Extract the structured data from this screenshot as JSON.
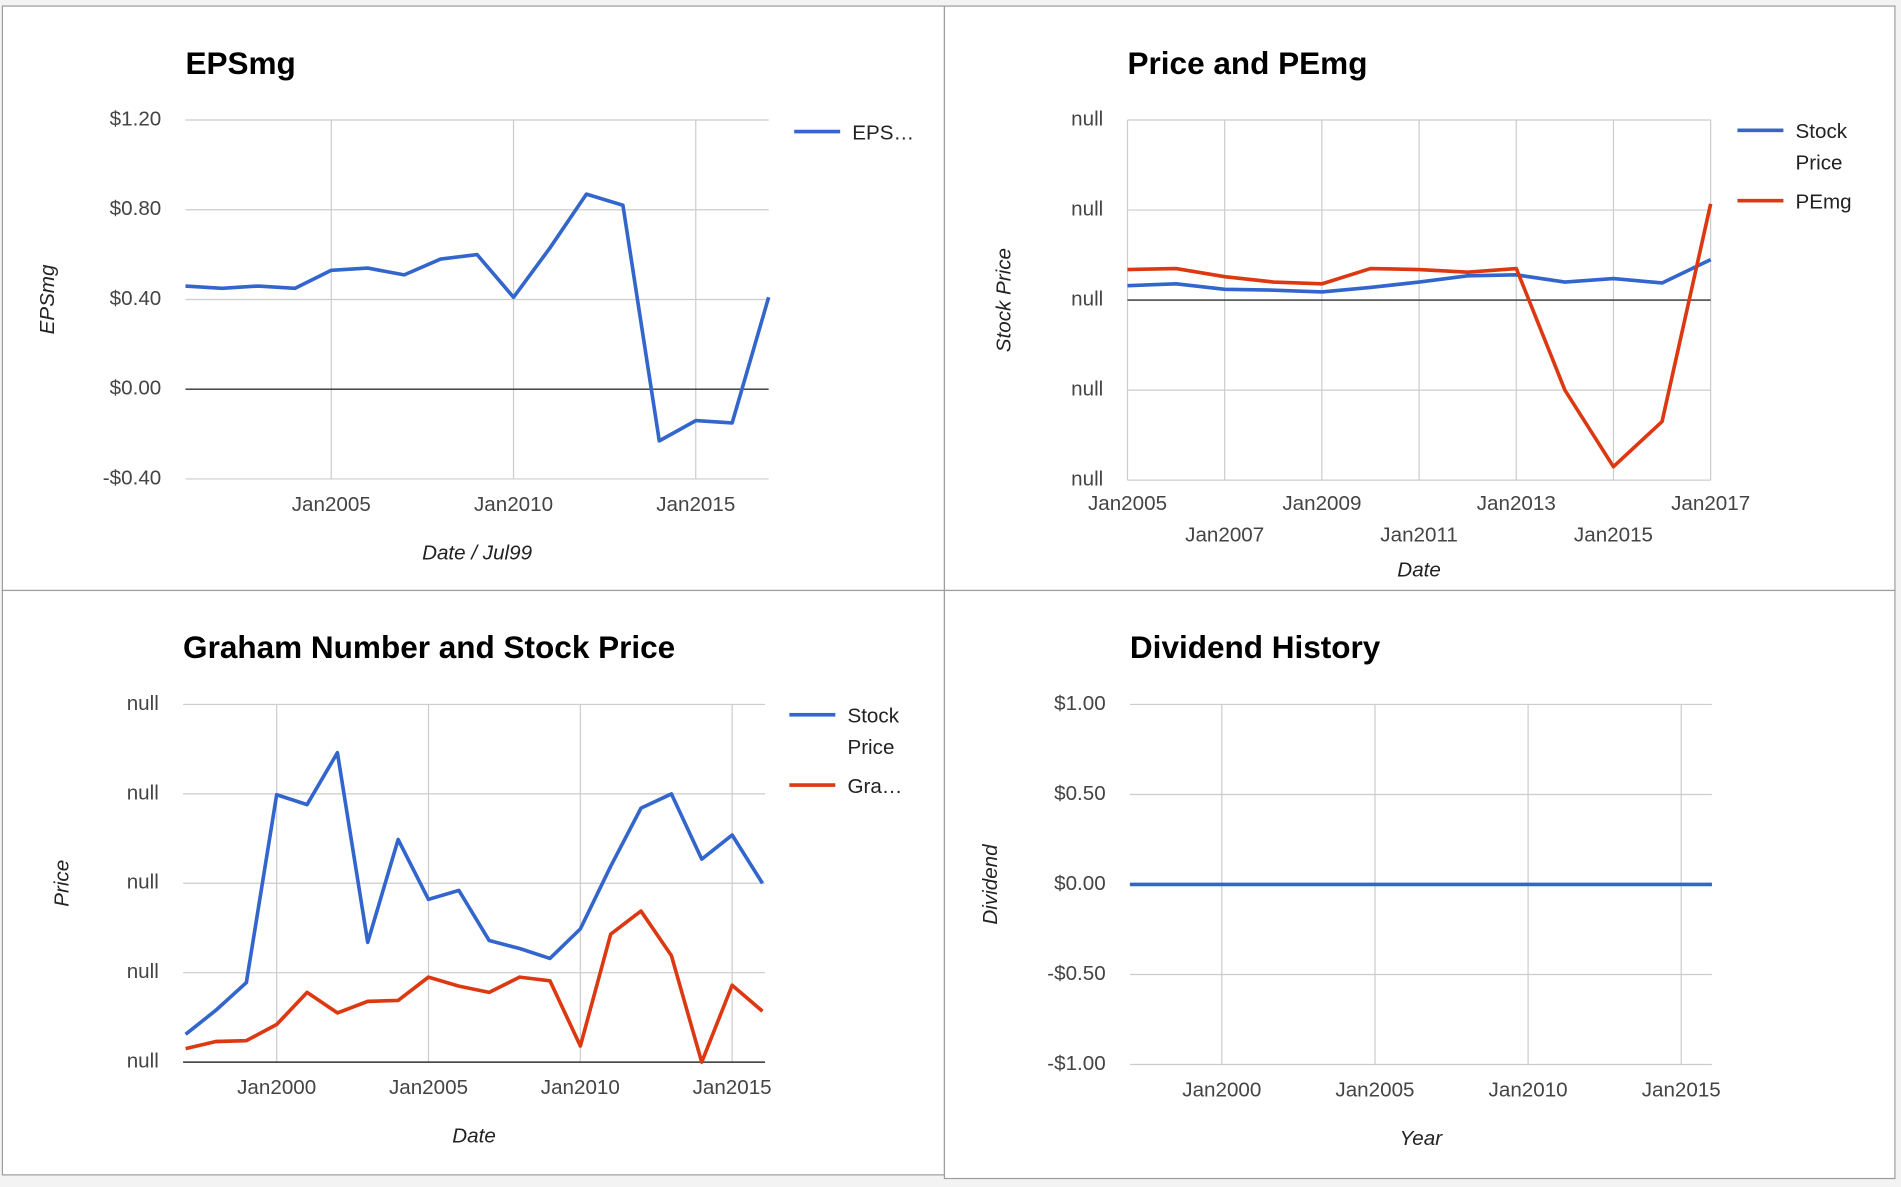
{
  "chart_data": [
    {
      "type": "line",
      "title": "EPSmg",
      "x_label": "Date / Jul99",
      "y_label": "EPSmg",
      "legend": "right",
      "x": [
        "2001-01",
        "2002-01",
        "2003-01",
        "2004-01",
        "2005-01",
        "2006-01",
        "2007-01",
        "2008-01",
        "2009-01",
        "2010-01",
        "2011-01",
        "2012-01",
        "2013-01",
        "2014-01",
        "2015-01",
        "2016-01",
        "2017-01"
      ],
      "xlim": [
        "2001-01",
        "2017-01"
      ],
      "xticks": [
        {
          "value": "2005-01",
          "label": "Jan2005"
        },
        {
          "value": "2010-01",
          "label": "Jan2010"
        },
        {
          "value": "2015-01",
          "label": "Jan2015"
        }
      ],
      "ylim": [
        -0.4,
        1.2
      ],
      "yticks": [
        {
          "value": -0.4,
          "label": "-$0.40"
        },
        {
          "value": 0,
          "label": "$0.00"
        },
        {
          "value": 0.4,
          "label": "$0.40"
        },
        {
          "value": 0.8,
          "label": "$0.80"
        },
        {
          "value": 1.2,
          "label": "$1.20"
        }
      ],
      "grid": true,
      "series": [
        {
          "name": "EPS…",
          "color": "#3366cc",
          "values": [
            0.46,
            0.45,
            0.46,
            0.45,
            0.53,
            0.54,
            0.51,
            0.58,
            0.6,
            0.41,
            0.63,
            0.87,
            0.82,
            -0.23,
            -0.14,
            -0.15,
            0.41
          ]
        }
      ]
    },
    {
      "type": "line",
      "title": "Price and PEmg",
      "x_label": "Date",
      "y_label": "Stock Price",
      "legend": "right",
      "x": [
        "2005-01",
        "2006-01",
        "2007-01",
        "2008-01",
        "2009-01",
        "2010-01",
        "2011-01",
        "2012-01",
        "2013-01",
        "2014-01",
        "2015-01",
        "2016-01",
        "2017-01"
      ],
      "xlim": [
        "2005-01",
        "2017-01"
      ],
      "xticks": [
        {
          "value": "2005-01",
          "label": "Jan2005"
        },
        {
          "value": "2007-01",
          "label": "Jan2007"
        },
        {
          "value": "2009-01",
          "label": "Jan2009"
        },
        {
          "value": "2011-01",
          "label": "Jan2011"
        },
        {
          "value": "2013-01",
          "label": "Jan2013"
        },
        {
          "value": "2015-01",
          "label": "Jan2015"
        },
        {
          "value": "2017-01",
          "label": "Jan2017"
        }
      ],
      "ylim": [
        -20,
        20
      ],
      "yticks": [
        {
          "value": -20,
          "label": "null"
        },
        {
          "value": -10,
          "label": "null"
        },
        {
          "value": 0,
          "label": "null"
        },
        {
          "value": 10,
          "label": "null"
        },
        {
          "value": 20,
          "label": "null"
        }
      ],
      "grid": true,
      "series": [
        {
          "name": "Stock Price",
          "color": "#3366cc",
          "values": [
            1.6,
            1.8,
            1.2,
            1.1,
            0.9,
            1.4,
            2.0,
            2.7,
            2.8,
            2.0,
            2.4,
            1.9,
            4.5
          ]
        },
        {
          "name": "PEmg",
          "color": "#dc3912",
          "values": [
            3.4,
            3.5,
            2.6,
            2.0,
            1.8,
            3.5,
            3.4,
            3.1,
            3.5,
            -10.0,
            -18.5,
            -13.5,
            10.7
          ]
        }
      ]
    },
    {
      "type": "line",
      "title": "Graham Number and Stock Price",
      "x_label": "Date",
      "y_label": "Price",
      "legend": "right",
      "x": [
        "1997-01",
        "1998-01",
        "1999-01",
        "2000-01",
        "2001-01",
        "2002-01",
        "2003-01",
        "2004-01",
        "2005-01",
        "2006-01",
        "2007-01",
        "2008-01",
        "2009-01",
        "2010-01",
        "2011-01",
        "2012-01",
        "2013-01",
        "2014-01",
        "2015-01",
        "2016-01"
      ],
      "xlim": [
        "1996-12",
        "2016-02"
      ],
      "xticks": [
        {
          "value": "2000-01",
          "label": "Jan2000"
        },
        {
          "value": "2005-01",
          "label": "Jan2005"
        },
        {
          "value": "2010-01",
          "label": "Jan2010"
        },
        {
          "value": "2015-01",
          "label": "Jan2015"
        }
      ],
      "ylim": [
        0,
        40
      ],
      "yticks": [
        {
          "value": 0,
          "label": "null"
        },
        {
          "value": 10,
          "label": "null"
        },
        {
          "value": 20,
          "label": "null"
        },
        {
          "value": 30,
          "label": "null"
        },
        {
          "value": 40,
          "label": "null"
        }
      ],
      "grid": true,
      "series": [
        {
          "name": "Stock Price",
          "color": "#3366cc",
          "values": [
            3.1,
            5.8,
            8.9,
            29.9,
            28.8,
            34.6,
            13.4,
            24.9,
            18.2,
            19.2,
            13.6,
            12.7,
            11.6,
            14.9,
            21.9,
            28.4,
            30.0,
            22.7,
            25.4,
            20.0
          ]
        },
        {
          "name": "Gra…",
          "color": "#dc3912",
          "values": [
            1.5,
            2.3,
            2.4,
            4.2,
            7.8,
            5.5,
            6.8,
            6.9,
            9.5,
            8.5,
            7.8,
            9.5,
            9.1,
            1.8,
            14.3,
            16.9,
            11.9,
            0,
            8.6,
            5.7
          ]
        }
      ]
    },
    {
      "type": "line",
      "title": "Dividend History",
      "x_label": "Year",
      "y_label": "Dividend",
      "x": [
        "1997-01",
        "1998-01",
        "1999-01",
        "2000-01",
        "2001-01",
        "2002-01",
        "2003-01",
        "2004-01",
        "2005-01",
        "2006-01",
        "2007-01",
        "2008-01",
        "2009-01",
        "2010-01",
        "2011-01",
        "2012-01",
        "2013-01",
        "2014-01",
        "2015-01",
        "2016-01"
      ],
      "xlim": [
        "1997-01",
        "2016-01"
      ],
      "xticks": [
        {
          "value": "2000-01",
          "label": "Jan2000"
        },
        {
          "value": "2005-01",
          "label": "Jan2005"
        },
        {
          "value": "2010-01",
          "label": "Jan2010"
        },
        {
          "value": "2015-01",
          "label": "Jan2015"
        }
      ],
      "ylim": [
        -1,
        1
      ],
      "yticks": [
        {
          "value": -1,
          "label": "-$1.00"
        },
        {
          "value": -0.5,
          "label": "-$0.50"
        },
        {
          "value": 0,
          "label": "$0.00"
        },
        {
          "value": 0.5,
          "label": "$0.50"
        },
        {
          "value": 1,
          "label": "$1.00"
        }
      ],
      "grid": true,
      "series": [
        {
          "name": "Dividend",
          "color": "#3366cc",
          "values": [
            0,
            0,
            0,
            0,
            0,
            0,
            0,
            0,
            0,
            0,
            0,
            0,
            0,
            0,
            0,
            0,
            0,
            0,
            0,
            0
          ]
        }
      ]
    }
  ]
}
